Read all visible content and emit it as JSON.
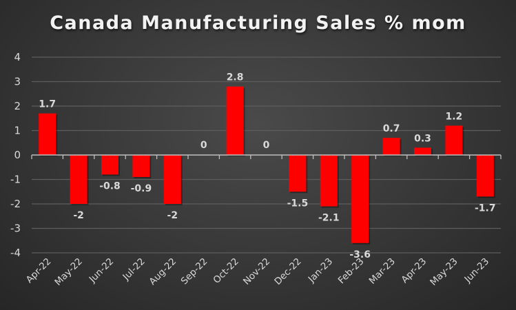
{
  "chart_data": {
    "type": "bar",
    "title": "Canada Manufacturing Sales % mom",
    "xlabel": "",
    "ylabel": "",
    "categories": [
      "Apr-22",
      "May-22",
      "Jun-22",
      "Jul-22",
      "Aug-22",
      "Sep-22",
      "Oct-22",
      "Nov-22",
      "Dec-22",
      "Jan-23",
      "Feb-23",
      "Mar-23",
      "Apr-23",
      "May-23",
      "Jun-23"
    ],
    "values": [
      1.7,
      -2,
      -0.8,
      -0.9,
      -2,
      0,
      2.8,
      0,
      -1.5,
      -2.1,
      -3.6,
      0.7,
      0.3,
      1.2,
      -1.7
    ],
    "data_labels": [
      "1.7",
      "-2",
      "-0.8",
      "-0.9",
      "-2",
      "0",
      "2.8",
      "0",
      "-1.5",
      "-2.1",
      "-3.6",
      "0.7",
      "0.3",
      "1.2",
      "-1.7"
    ],
    "ylim": [
      -4,
      4
    ],
    "yticks": [
      4,
      3,
      2,
      1,
      0,
      -1,
      -2,
      -3,
      -4
    ],
    "grid": true,
    "legend": "none",
    "bar_color": "#ff0000",
    "background_color": "#3a3a3a",
    "text_color": "#d9d9d9"
  }
}
